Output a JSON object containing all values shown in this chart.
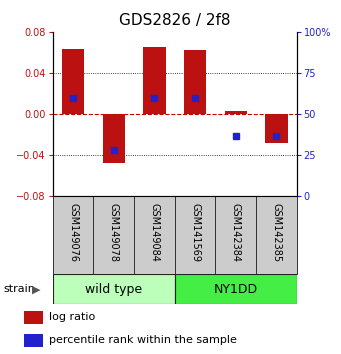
{
  "title": "GDS2826 / 2f8",
  "samples": [
    "GSM149076",
    "GSM149078",
    "GSM149084",
    "GSM141569",
    "GSM142384",
    "GSM142385"
  ],
  "log_ratios": [
    0.063,
    -0.047,
    0.065,
    0.062,
    0.003,
    -0.028
  ],
  "percentile_ranks": [
    60,
    28,
    60,
    60,
    37,
    37
  ],
  "groups": [
    {
      "label": "wild type",
      "indices": [
        0,
        1,
        2
      ],
      "color": "#bbffbb"
    },
    {
      "label": "NY1DD",
      "indices": [
        3,
        4,
        5
      ],
      "color": "#44ee44"
    }
  ],
  "ylim_left": [
    -0.08,
    0.08
  ],
  "ylim_right": [
    0,
    100
  ],
  "yticks_left": [
    -0.08,
    -0.04,
    0,
    0.04,
    0.08
  ],
  "yticks_right": [
    0,
    25,
    50,
    75,
    100
  ],
  "bar_color": "#bb1111",
  "dot_color": "#2222cc",
  "zero_line_color": "#cc0000",
  "grid_color": "#000000",
  "title_fontsize": 11,
  "tick_fontsize": 7,
  "sample_fontsize": 7,
  "legend_fontsize": 8,
  "bar_width": 0.55,
  "fig_width": 3.41,
  "fig_height": 3.54,
  "dpi": 100
}
